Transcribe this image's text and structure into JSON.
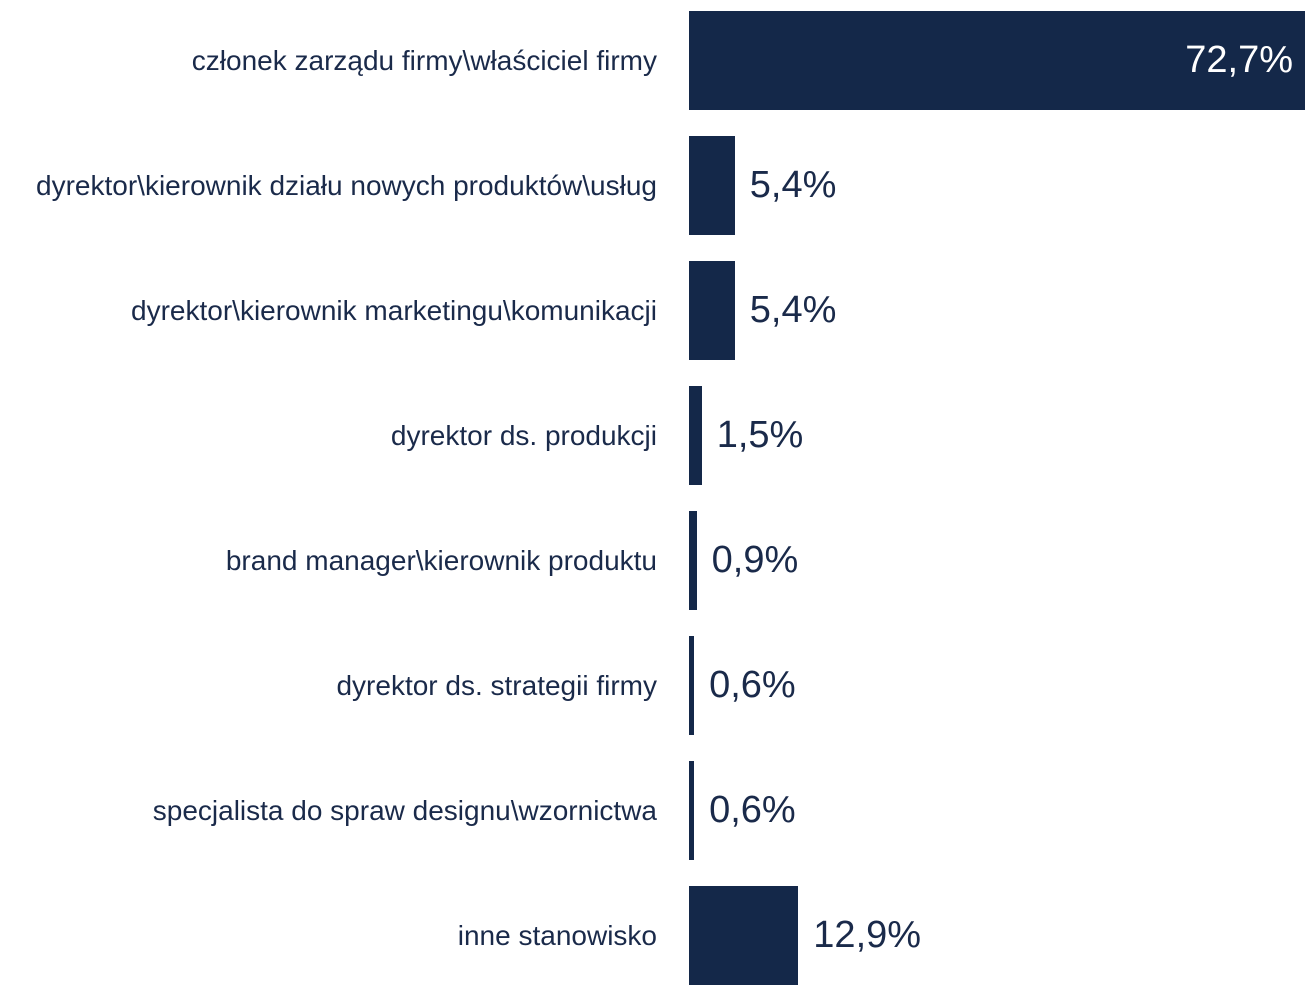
{
  "chart_data": {
    "type": "bar",
    "orientation": "horizontal",
    "color": "#142849",
    "categories": [
      "członek zarządu firmy\\właściciel firmy",
      "dyrektor\\kierownik działu nowych produktów\\usług",
      "dyrektor\\kierownik marketingu\\komunikacji",
      "dyrektor ds. produkcji",
      "brand manager\\kierownik produktu",
      "dyrektor ds. strategii firmy",
      "specjalista do spraw designu\\wzornictwa",
      "inne stanowisko"
    ],
    "values": [
      72.7,
      5.4,
      5.4,
      1.5,
      0.9,
      0.6,
      0.6,
      12.9
    ],
    "value_labels": [
      "72,7%",
      "5,4%",
      "5,4%",
      "1,5%",
      "0,9%",
      "0,6%",
      "0,6%",
      "12,9%"
    ]
  }
}
